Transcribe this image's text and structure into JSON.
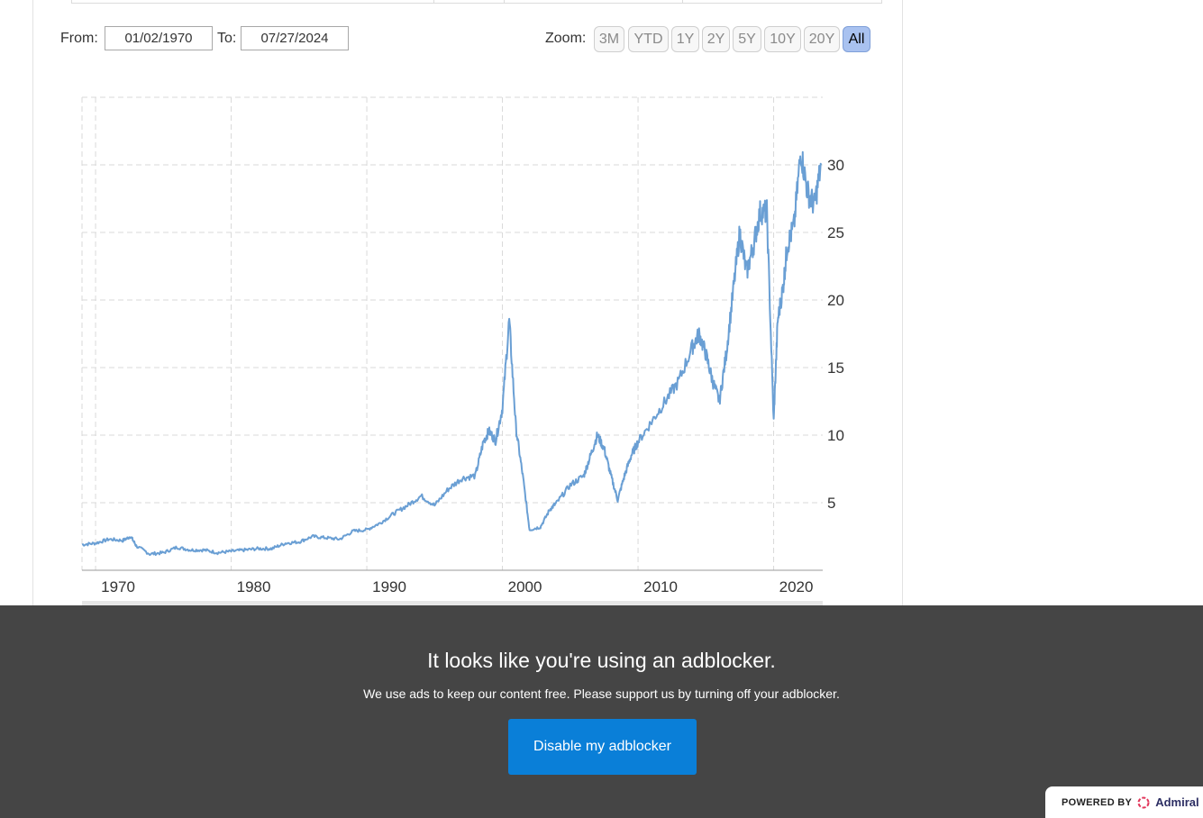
{
  "range_selector": {
    "from_label": "From:",
    "from_value": "01/02/1970",
    "to_label": "To:",
    "to_value": "07/27/2024"
  },
  "zoom": {
    "label": "Zoom:",
    "buttons": [
      "3M",
      "YTD",
      "1Y",
      "2Y",
      "5Y",
      "10Y",
      "20Y",
      "All"
    ],
    "active": "All"
  },
  "chart_data": {
    "type": "line",
    "xlim": [
      1969,
      2023.5
    ],
    "ylim": [
      0,
      35
    ],
    "x_ticks": [
      "1970",
      "1980",
      "1990",
      "2000",
      "2010",
      "2020"
    ],
    "y_ticks": [
      "5",
      "10",
      "15",
      "20",
      "25",
      "30"
    ],
    "grid": true,
    "line_color": "#6a9fd4",
    "series": [
      {
        "x": [
          1969.0,
          1970.0,
          1971.0,
          1972.0,
          1972.6,
          1973.0,
          1974.0,
          1975.0,
          1976.0,
          1977.0,
          1978.0,
          1979.0,
          1980.0,
          1981.0,
          1982.0,
          1983.0,
          1984.0,
          1985.0,
          1986.0,
          1987.0,
          1988.0,
          1989.0,
          1990.0,
          1991.0,
          1992.0,
          1993.0,
          1994.0,
          1995.0,
          1996.0,
          1997.0,
          1998.0,
          1998.6,
          1999.0,
          1999.5,
          2000.0,
          2000.5,
          2001.0,
          2001.5,
          2002.0,
          2002.8,
          2003.5,
          2004.0,
          2005.0,
          2006.0,
          2006.5,
          2007.0,
          2007.5,
          2008.0,
          2008.5,
          2009.0,
          2009.5,
          2010.0,
          2011.0,
          2012.0,
          2013.0,
          2014.0,
          2014.5,
          2015.0,
          2015.5,
          2016.0,
          2016.5,
          2017.0,
          2017.5,
          2018.0,
          2018.5,
          2019.0,
          2019.5,
          2020.0,
          2020.3,
          2020.7,
          2021.0,
          2021.5,
          2022.0,
          2022.5,
          2023.0,
          2023.5
        ],
        "y": [
          1.9,
          2.0,
          2.3,
          2.2,
          2.5,
          1.8,
          1.2,
          1.3,
          1.7,
          1.5,
          1.5,
          1.3,
          1.4,
          1.5,
          1.6,
          1.6,
          2.0,
          2.1,
          2.5,
          2.4,
          2.3,
          2.9,
          3.0,
          3.5,
          4.2,
          4.8,
          5.5,
          4.8,
          6.0,
          6.8,
          7.0,
          9.5,
          10.3,
          9.6,
          12.0,
          18.5,
          10.5,
          7.0,
          3.0,
          3.2,
          4.5,
          5.0,
          6.3,
          7.0,
          8.5,
          10.0,
          9.0,
          7.0,
          5.2,
          7.0,
          8.5,
          9.5,
          11.0,
          12.5,
          14.0,
          16.5,
          17.5,
          16.0,
          14.0,
          12.5,
          16.0,
          20.5,
          25.0,
          22.0,
          24.0,
          26.5,
          26.5,
          11.0,
          18.5,
          21.0,
          24.0,
          25.5,
          31.0,
          28.0,
          27.0,
          30.0
        ]
      }
    ]
  },
  "adblock": {
    "title": "It looks like you're using an adblocker.",
    "message": "We use ads to keep our content free. Please support us by turning off your adblocker.",
    "button": "Disable my adblocker",
    "powered_by": "POWERED BY",
    "brand": "Admiral"
  }
}
